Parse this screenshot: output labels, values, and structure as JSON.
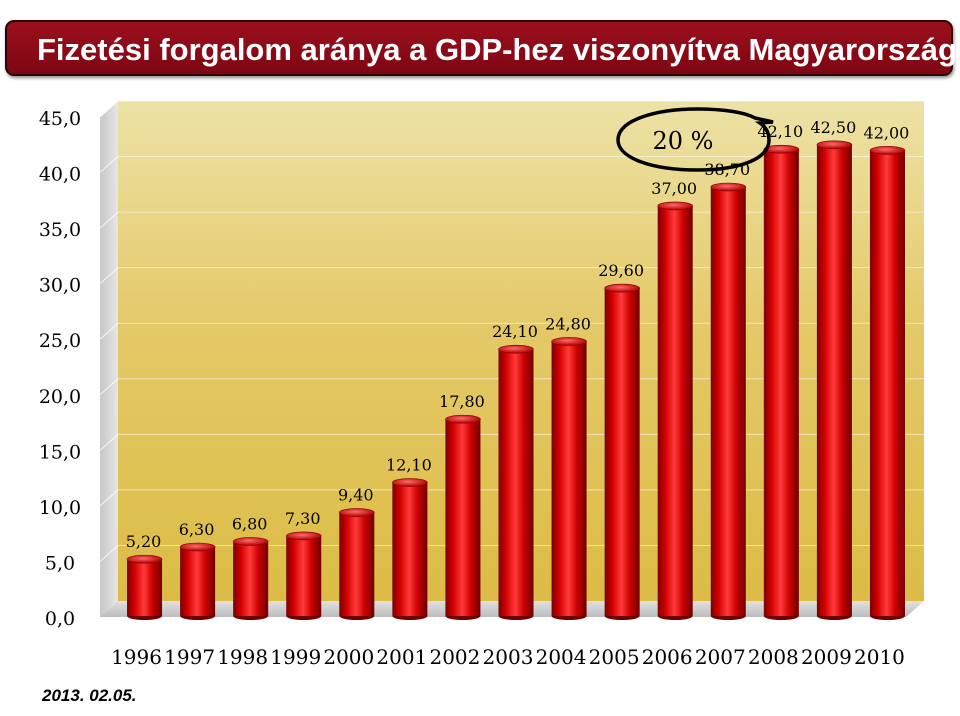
{
  "header": {
    "title": "Fizetési forgalom aránya a GDP-hez viszonyítva Magyarországon"
  },
  "footer": {
    "date": "2013. 02.05."
  },
  "annotation": {
    "text": "20 %"
  },
  "colors": {
    "bar": "#cc0000",
    "bar_dark": "#6e0000",
    "bar_light": "#ff5a5a",
    "wall": "#e9d680",
    "title_bg": "#8c0a16"
  },
  "chart_data": {
    "type": "bar",
    "title": "Fizetési forgalom aránya a GDP-hez viszonyítva Magyarországon",
    "xlabel": "",
    "ylabel": "",
    "ylim": [
      0,
      45
    ],
    "yticks": [
      0,
      5,
      10,
      15,
      20,
      25,
      30,
      35,
      40,
      45
    ],
    "ytick_labels": [
      "0,0",
      "5,0",
      "10,0",
      "15,0",
      "20,0",
      "25,0",
      "30,0",
      "35,0",
      "40,0",
      "45,0"
    ],
    "categories": [
      "1996",
      "1997",
      "1998",
      "1999",
      "2000",
      "2001",
      "2002",
      "2003",
      "2004",
      "2005",
      "2006",
      "2007",
      "2008",
      "2009",
      "2010"
    ],
    "values": [
      5.2,
      6.3,
      6.8,
      7.3,
      9.4,
      12.1,
      17.8,
      24.1,
      24.8,
      29.6,
      37.0,
      38.7,
      42.1,
      42.5,
      42.0
    ],
    "data_labels": [
      "5,20",
      "6,30",
      "6,80",
      "7,30",
      "9,40",
      "12,10",
      "17,80",
      "24,10",
      "24,80",
      "29,60",
      "37,00",
      "38,70",
      "42,10",
      "42,50",
      "42,00"
    ],
    "grid": true,
    "legend": "none"
  }
}
